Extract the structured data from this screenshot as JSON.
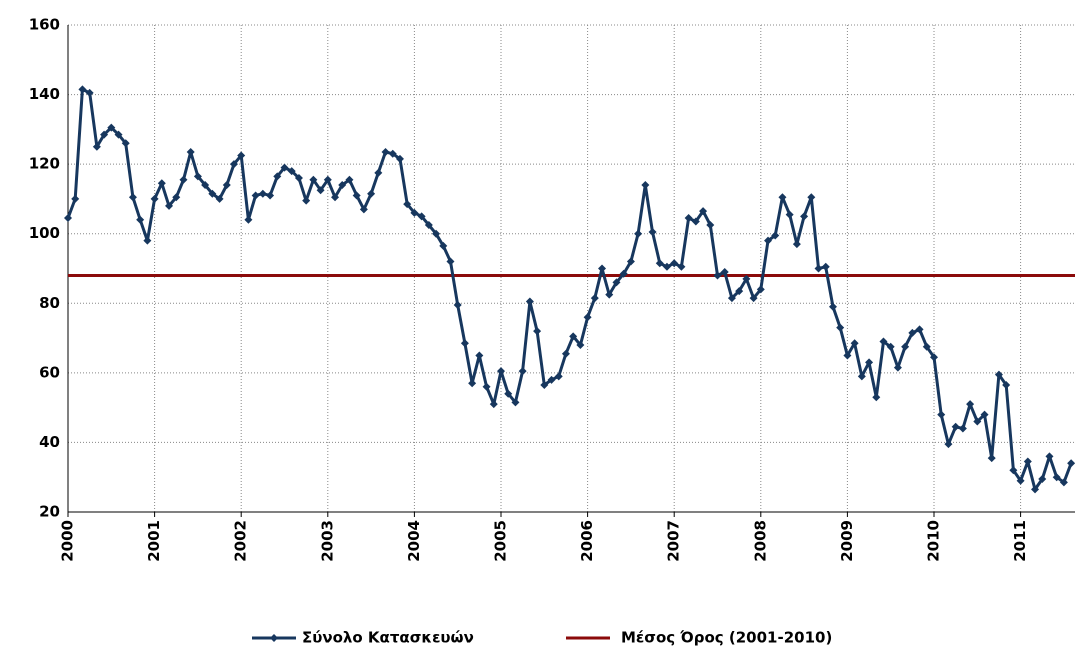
{
  "chart_data": {
    "type": "line",
    "categories": [
      "2000",
      null,
      null,
      null,
      null,
      null,
      null,
      null,
      null,
      null,
      null,
      null,
      "2001",
      null,
      null,
      null,
      null,
      null,
      null,
      null,
      null,
      null,
      null,
      null,
      "2002",
      null,
      null,
      null,
      null,
      null,
      null,
      null,
      null,
      null,
      null,
      null,
      "2003",
      null,
      null,
      null,
      null,
      null,
      null,
      null,
      null,
      null,
      null,
      null,
      "2004",
      null,
      null,
      null,
      null,
      null,
      null,
      null,
      null,
      null,
      null,
      null,
      "2005",
      null,
      null,
      null,
      null,
      null,
      null,
      null,
      null,
      null,
      null,
      null,
      "2006",
      null,
      null,
      null,
      null,
      null,
      null,
      null,
      null,
      null,
      null,
      null,
      "2007",
      null,
      null,
      null,
      null,
      null,
      null,
      null,
      null,
      null,
      null,
      null,
      "2008",
      null,
      null,
      null,
      null,
      null,
      null,
      null,
      null,
      null,
      null,
      null,
      "2009",
      null,
      null,
      null,
      null,
      null,
      null,
      null,
      null,
      null,
      null,
      null,
      "2010",
      null,
      null,
      null,
      null,
      null,
      null,
      null,
      null,
      null,
      null,
      null,
      "2011",
      null,
      null,
      null,
      null,
      null,
      null,
      null
    ],
    "series": [
      {
        "name": "Σύνολο Κατασκευών",
        "color": "#17375e",
        "values": [
          104.5,
          110,
          141.5,
          140.5,
          125,
          128.5,
          130.5,
          128.5,
          126,
          110.5,
          104,
          98,
          110,
          114.5,
          108,
          110.5,
          115.5,
          123.5,
          116.5,
          114,
          111.5,
          110,
          114,
          120,
          122.5,
          104,
          111,
          111.5,
          111,
          116.5,
          119,
          118,
          116,
          109.5,
          115.5,
          112.5,
          115.5,
          110.5,
          114,
          115.5,
          111,
          107,
          111.5,
          117.5,
          123.5,
          123,
          121.5,
          108.5,
          106,
          105,
          102.5,
          100,
          96.5,
          92,
          79.5,
          68.5,
          57,
          65,
          56,
          51,
          60.5,
          54,
          51.5,
          60.5,
          80.5,
          72,
          56.5,
          58,
          59,
          65.5,
          70.5,
          68,
          76,
          81.5,
          90,
          82.5,
          86,
          88.5,
          92,
          100,
          114,
          100.5,
          91.5,
          90.5,
          91.5,
          90.5,
          104.5,
          103.5,
          106.5,
          102.5,
          88,
          89,
          81.5,
          83.5,
          87,
          81.5,
          84,
          98,
          99.5,
          110.5,
          105.5,
          97,
          105,
          110.5,
          90,
          90.5,
          79,
          73,
          65,
          68.5,
          59,
          63,
          53,
          69,
          67.5,
          61.5,
          67.5,
          71.5,
          72.5,
          67.5,
          64.5,
          48,
          39.5,
          44.5,
          44,
          51,
          46,
          48,
          35.5,
          59.5,
          56.5,
          32,
          29,
          34.5,
          26.5,
          29.5,
          36,
          30,
          28.5,
          34
        ]
      }
    ],
    "hline": {
      "name": "Μέσος Όρος (2001-2010)",
      "value": 88,
      "color": "#8b0a0a"
    },
    "ylim": [
      20,
      160
    ],
    "yticks": [
      20,
      40,
      60,
      80,
      100,
      120,
      140,
      160
    ],
    "grid": true
  }
}
